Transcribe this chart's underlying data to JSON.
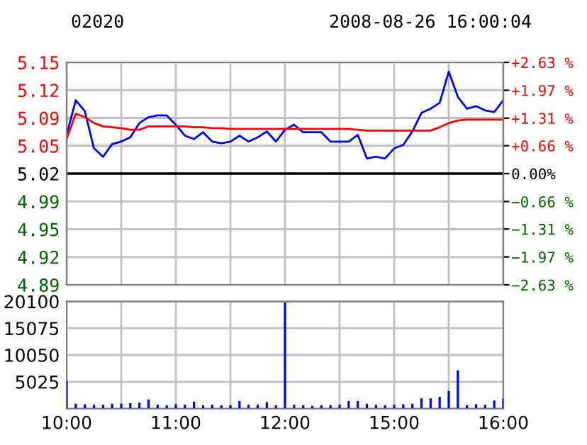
{
  "chart_data": [
    {
      "type": "line",
      "title": "02020",
      "subtitle": "2008-08-26 16:00:04",
      "categories": [
        null,
        null,
        null,
        null,
        null,
        null,
        null,
        null,
        null,
        null,
        null,
        null,
        null,
        null,
        null,
        null,
        null,
        null,
        null,
        null,
        null,
        null,
        null,
        null,
        null,
        null,
        null,
        null,
        null,
        null,
        null,
        null,
        null,
        null,
        null,
        null,
        null,
        null,
        null,
        null,
        null,
        null,
        null,
        null,
        null,
        null,
        null,
        null,
        null
      ],
      "ylim": [
        4.888,
        5.152
      ],
      "yticks": [
        {
          "value": 4.888,
          "label": "4.89"
        },
        {
          "value": 4.921,
          "label": "4.92"
        },
        {
          "value": 4.954,
          "label": "4.95"
        },
        {
          "value": 4.987,
          "label": "4.99"
        },
        {
          "value": 5.02,
          "label": "5.02"
        },
        {
          "value": 5.053,
          "label": "5.05"
        },
        {
          "value": 5.086,
          "label": "5.09"
        },
        {
          "value": 5.119,
          "label": "5.12"
        },
        {
          "value": 5.152,
          "label": "5.15"
        }
      ],
      "y2lim": [
        -2.63,
        2.63
      ],
      "y2ticks": [
        {
          "value": -2.63,
          "label": "−2.63 %"
        },
        {
          "value": -1.97,
          "label": "−1.97 %"
        },
        {
          "value": -1.31,
          "label": "−1.31 %"
        },
        {
          "value": -0.66,
          "label": "−0.66 %"
        },
        {
          "value": 0,
          "label": "0.00%"
        },
        {
          "value": 0.66,
          "label": "+0.66 %"
        },
        {
          "value": 1.31,
          "label": "+1.31 %"
        },
        {
          "value": 1.97,
          "label": "+1.97 %"
        },
        {
          "value": 2.63,
          "label": "+2.63 %"
        }
      ],
      "ref_lines": [
        {
          "axis": "y",
          "value": 5.02,
          "color": "#000000"
        }
      ],
      "grid": true,
      "legend": false,
      "tick_labels": "y",
      "marker": "none",
      "line_style": "solid",
      "series": [
        {
          "color": "#0000ff",
          "values": [
            5.066,
            5.107,
            5.094,
            5.05,
            5.04,
            5.055,
            5.058,
            5.063,
            5.08,
            5.087,
            5.089,
            5.089,
            5.078,
            5.065,
            5.061,
            5.069,
            5.058,
            5.056,
            5.058,
            5.065,
            5.058,
            5.063,
            5.07,
            5.058,
            5.072,
            5.078,
            5.069,
            5.069,
            5.069,
            5.058,
            5.058,
            5.058,
            5.066,
            5.038,
            5.04,
            5.038,
            5.05,
            5.054,
            5.07,
            5.092,
            5.097,
            5.104,
            5.141,
            5.111,
            5.097,
            5.1,
            5.095,
            5.093,
            5.107
          ]
        },
        {
          "color": "#ff0000",
          "values": [
            5.061,
            5.091,
            5.087,
            5.08,
            5.076,
            5.075,
            5.074,
            5.072,
            5.072,
            5.076,
            5.076,
            5.076,
            5.076,
            5.076,
            5.075,
            5.075,
            5.074,
            5.074,
            5.073,
            5.073,
            5.073,
            5.073,
            5.073,
            5.073,
            5.073,
            5.073,
            5.073,
            5.073,
            5.073,
            5.073,
            5.073,
            5.073,
            5.072,
            5.071,
            5.071,
            5.071,
            5.071,
            5.071,
            5.071,
            5.071,
            5.071,
            5.075,
            5.08,
            5.083,
            5.084,
            5.084,
            5.084,
            5.084,
            5.084
          ]
        }
      ]
    },
    {
      "type": "bar",
      "categories": [
        "10:00",
        null,
        null,
        null,
        null,
        null,
        null,
        null,
        null,
        null,
        null,
        null,
        "11:00",
        null,
        null,
        null,
        null,
        null,
        null,
        null,
        null,
        null,
        null,
        null,
        "12:00",
        null,
        null,
        null,
        null,
        null,
        null,
        null,
        null,
        null,
        null,
        null,
        "15:00",
        null,
        null,
        null,
        null,
        null,
        null,
        null,
        null,
        null,
        null,
        null,
        "16:00"
      ],
      "yticks": [
        5025,
        10050,
        15075,
        20100
      ],
      "ylim": [
        0,
        20100
      ],
      "grid": true,
      "legend": false,
      "series": [
        {
          "color": "#0000ff",
          "values": [
            5100,
            900,
            800,
            700,
            700,
            900,
            900,
            1000,
            1100,
            1700,
            700,
            600,
            800,
            700,
            1300,
            600,
            700,
            600,
            600,
            1400,
            700,
            700,
            1200,
            600,
            19900,
            700,
            600,
            500,
            600,
            600,
            700,
            1400,
            1400,
            900,
            700,
            600,
            700,
            800,
            900,
            1900,
            1900,
            2200,
            3300,
            7200,
            600,
            800,
            700,
            1500,
            1900
          ]
        }
      ]
    }
  ]
}
